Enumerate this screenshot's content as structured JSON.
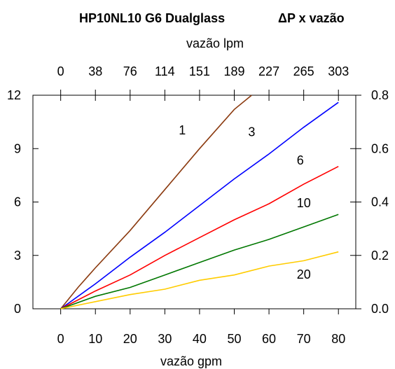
{
  "chart_data": {
    "type": "line",
    "title": "HP10NL10 G6 Dualglass",
    "subtitle": "ΔP x vazão",
    "xlabel": "vazão gpm",
    "x2label": "vazão lpm",
    "x": [
      0,
      10,
      20,
      30,
      40,
      50,
      60,
      70,
      80
    ],
    "xlim": [
      -8,
      85
    ],
    "xticks": [
      0,
      10,
      20,
      30,
      40,
      50,
      60,
      70,
      80
    ],
    "x2ticks": [
      "0",
      "38",
      "76",
      "114",
      "151",
      "189",
      "227",
      "265",
      "303"
    ],
    "ylim": [
      0,
      12
    ],
    "yticks": [
      0,
      3,
      6,
      9,
      12
    ],
    "y2lim": [
      0,
      0.8
    ],
    "y2ticks": [
      "0.0",
      "0.2",
      "0.4",
      "0.6",
      "0.8"
    ],
    "grid": false,
    "series": [
      {
        "name": "1",
        "color": "#8B3A0F",
        "x": [
          0,
          5,
          10,
          20,
          30,
          40,
          50,
          55
        ],
        "values": [
          0,
          1.2,
          2.3,
          4.4,
          6.7,
          9.0,
          11.2,
          12.0
        ]
      },
      {
        "name": "3",
        "color": "#0000FF",
        "x": [
          0,
          10,
          20,
          30,
          40,
          50,
          60,
          70,
          80
        ],
        "values": [
          0,
          1.4,
          2.9,
          4.3,
          5.8,
          7.3,
          8.7,
          10.2,
          11.6
        ]
      },
      {
        "name": "6",
        "color": "#FF0000",
        "x": [
          0,
          10,
          20,
          30,
          40,
          50,
          60,
          70,
          80
        ],
        "values": [
          0,
          1.0,
          1.9,
          3.0,
          4.0,
          5.0,
          5.9,
          7.0,
          8.0
        ]
      },
      {
        "name": "10",
        "color": "#007700",
        "x": [
          0,
          10,
          20,
          30,
          40,
          50,
          60,
          70,
          80
        ],
        "values": [
          0,
          0.7,
          1.2,
          1.9,
          2.6,
          3.3,
          3.9,
          4.6,
          5.3
        ]
      },
      {
        "name": "20",
        "color": "#FFCC00",
        "x": [
          0,
          10,
          20,
          30,
          40,
          50,
          60,
          70,
          80
        ],
        "values": [
          0,
          0.4,
          0.8,
          1.1,
          1.6,
          1.9,
          2.4,
          2.7,
          3.2
        ]
      }
    ],
    "series_labels": [
      {
        "text": "1",
        "x": 34,
        "y": 9.8
      },
      {
        "text": "3",
        "x": 54,
        "y": 9.7
      },
      {
        "text": "6",
        "x": 68,
        "y": 8.1
      },
      {
        "text": "10",
        "x": 68,
        "y": 5.7
      },
      {
        "text": "20",
        "x": 68,
        "y": 1.7
      }
    ]
  }
}
